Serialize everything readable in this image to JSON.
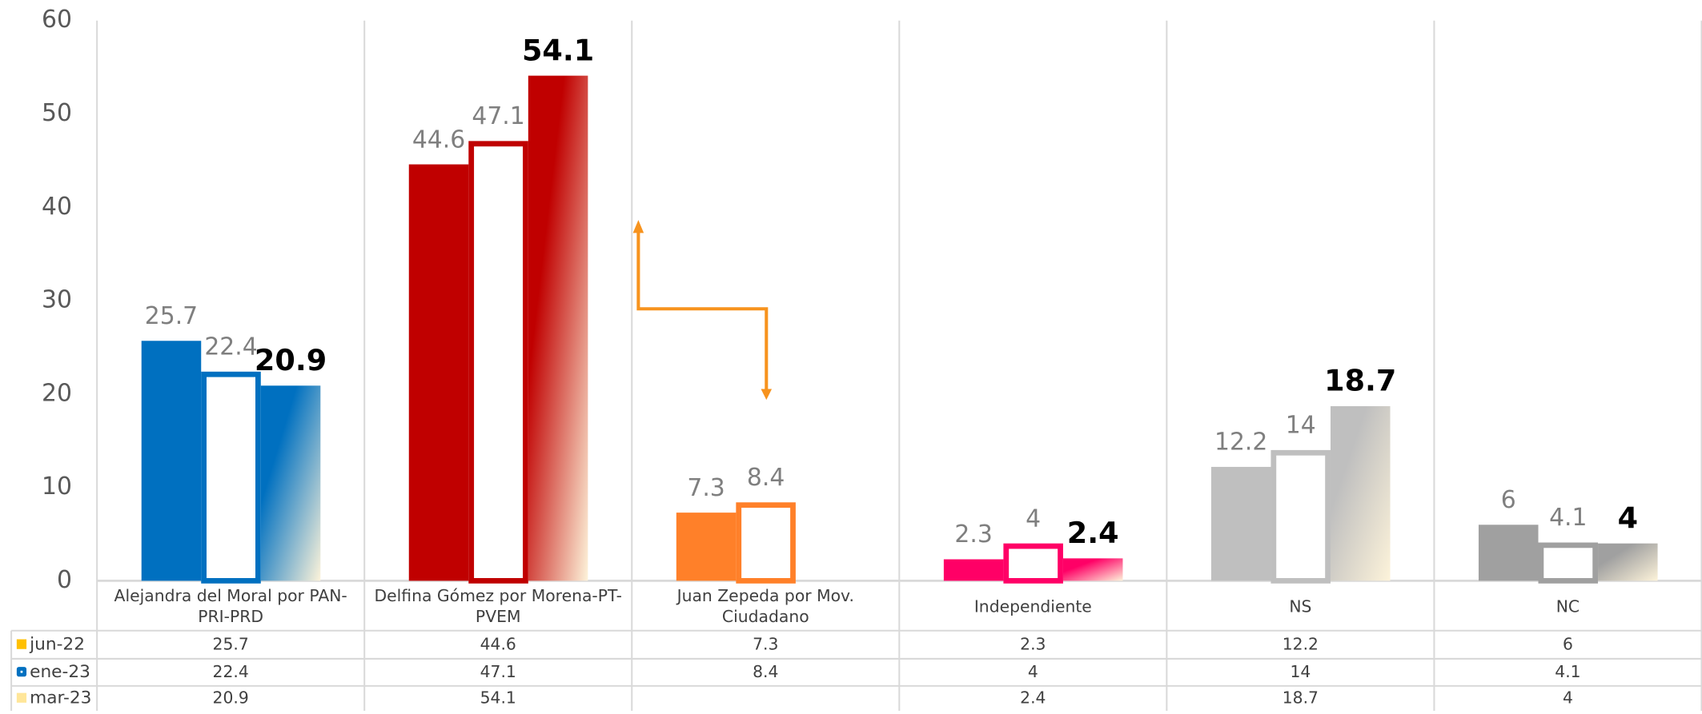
{
  "chart_data": {
    "type": "bar",
    "categories": [
      "Alejandra del Moral por PAN-PRI-PRD",
      "Delfina Gómez por Morena-PT-PVEM",
      "Juan Zepeda por Mov. Ciudadano",
      "Independiente",
      "NS",
      "NC"
    ],
    "category_colors": [
      "#0070c0",
      "#c00000",
      "#ff8029",
      "#ff0066",
      "#bfbfbf",
      "#a0a0a0"
    ],
    "series": [
      {
        "name": "jun-22",
        "color": "#ffc000",
        "values": [
          25.7,
          44.6,
          7.3,
          2.3,
          12.2,
          6
        ]
      },
      {
        "name": "ene-23",
        "color": "#0070c0",
        "values": [
          22.4,
          47.1,
          8.4,
          4,
          14,
          4.1
        ]
      },
      {
        "name": "mar-23",
        "color": "#ffe699",
        "values": [
          20.9,
          54.1,
          null,
          2.4,
          18.7,
          4
        ]
      }
    ],
    "ylim": [
      0,
      60
    ],
    "yticks": [
      0,
      10,
      20,
      30,
      40,
      50,
      60
    ],
    "grid": true,
    "data_table": true
  }
}
